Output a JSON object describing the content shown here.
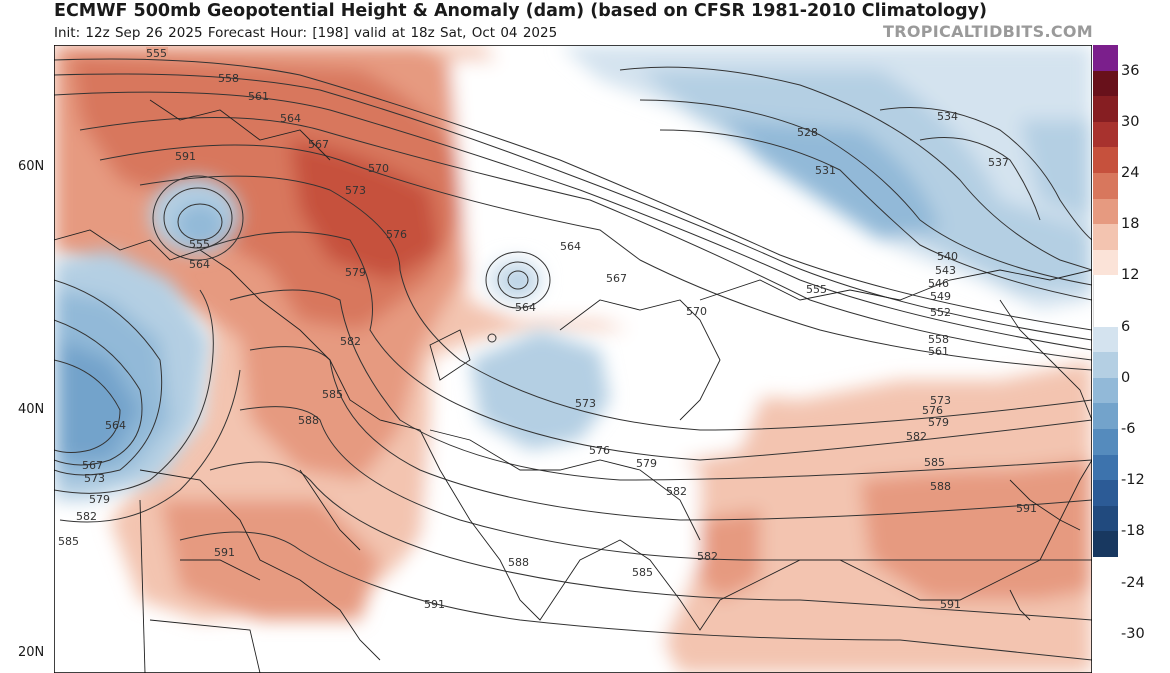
{
  "header": {
    "title": "ECMWF 500mb Geopotential Height & Anomaly (dam) (based on CFSR 1981-2010 Climatology)",
    "subtitle": "Init: 12z Sep 26 2025   Forecast Hour: [198]   valid at 18z Sat, Oct 04 2025",
    "watermark": "TROPICALTIDBITS.COM"
  },
  "latitude_labels": [
    "60N",
    "40N",
    "20N"
  ],
  "colorbar": {
    "labels": [
      "36",
      "30",
      "24",
      "18",
      "12",
      "6",
      "0",
      "-6",
      "-12",
      "-18",
      "-24",
      "-30"
    ],
    "colors_top_to_bottom": [
      "#7b1f8c",
      "#68111b",
      "#861e22",
      "#a8322e",
      "#c6513d",
      "#d8775d",
      "#e69a80",
      "#f3c4b0",
      "#fbe3d8",
      "#ffffff",
      "#ffffff",
      "#d4e3ef",
      "#b4cfe3",
      "#92b9d8",
      "#73a3cb",
      "#558bbd",
      "#3d73ad",
      "#2c5b96",
      "#214a7e",
      "#183860"
    ]
  },
  "contours": {
    "labels_left": [
      "555",
      "558",
      "561",
      "564",
      "567",
      "570",
      "573",
      "576",
      "579",
      "582",
      "585",
      "588",
      "591",
      "555",
      "564",
      "564",
      "567",
      "573",
      "579",
      "582",
      "585",
      "591",
      "591"
    ],
    "labels_center": [
      "564",
      "567",
      "570",
      "564",
      "573",
      "576",
      "579",
      "582",
      "588",
      "585"
    ],
    "labels_east": [
      "528",
      "531",
      "534",
      "537",
      "540",
      "543",
      "546",
      "549",
      "552",
      "555",
      "558",
      "561",
      "573",
      "576",
      "579",
      "582",
      "585",
      "588",
      "591",
      "591"
    ]
  }
}
